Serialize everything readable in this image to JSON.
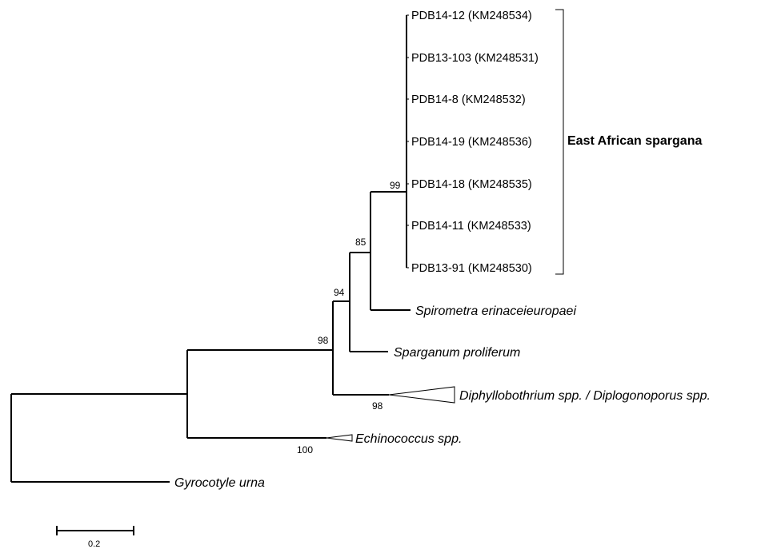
{
  "tree": {
    "leaves": {
      "pdb14_12": "PDB14-12 (KM248534)",
      "pdb13_103": "PDB13-103 (KM248531)",
      "pdb14_8": "PDB14-8 (KM248532)",
      "pdb14_19": "PDB14-19 (KM248536)",
      "pdb14_18": "PDB14-18 (KM248535)",
      "pdb14_11": "PDB14-11 (KM248533)",
      "pdb13_91": "PDB13-91 (KM248530)",
      "spirometra": "Spirometra erinaceieuropaei",
      "sparganum": "Sparganum proliferum",
      "diphyllobothrium": "Diphyllobothrium spp. / Diplogonoporus spp.",
      "echinococcus": "Echinococcus spp.",
      "gyrocotyle": "Gyrocotyle urna"
    },
    "support": {
      "east_african_clade": "99",
      "with_spirometra": "85",
      "with_sparganum": "94",
      "with_diphyllobothrium": "98",
      "diphyllobothrium_clade": "98",
      "echinococcus_clade": "100"
    },
    "group_label": "East African spargana",
    "scale_bar": {
      "value": "0.2"
    }
  }
}
